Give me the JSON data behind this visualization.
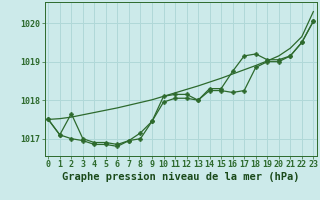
{
  "title": "Graphe pression niveau de la mer (hPa)",
  "xlabel_hours": [
    0,
    1,
    2,
    3,
    4,
    5,
    6,
    7,
    8,
    9,
    10,
    11,
    12,
    13,
    14,
    15,
    16,
    17,
    18,
    19,
    20,
    21,
    22,
    23
  ],
  "line_straight": [
    1017.5,
    1017.52,
    1017.56,
    1017.62,
    1017.68,
    1017.74,
    1017.8,
    1017.87,
    1017.94,
    1018.01,
    1018.1,
    1018.19,
    1018.28,
    1018.37,
    1018.47,
    1018.57,
    1018.68,
    1018.79,
    1018.9,
    1019.02,
    1019.15,
    1019.35,
    1019.65,
    1020.3
  ],
  "line_mid": [
    1017.5,
    1017.1,
    1017.65,
    1017.0,
    1016.9,
    1016.9,
    1016.85,
    1016.95,
    1017.15,
    1017.45,
    1017.95,
    1018.05,
    1018.05,
    1018.0,
    1018.25,
    1018.25,
    1018.2,
    1018.25,
    1018.85,
    1019.0,
    1019.0,
    1019.15,
    1019.5,
    1020.05
  ],
  "line_low": [
    1017.5,
    1017.1,
    1017.0,
    1016.95,
    1016.85,
    1016.85,
    1016.8,
    1016.95,
    1017.0,
    1017.45,
    1018.1,
    1018.15,
    1018.15,
    1018.0,
    1018.3,
    1018.3,
    1018.75,
    1019.15,
    1019.2,
    1019.05,
    1019.05,
    1019.15,
    1019.5,
    1020.05
  ],
  "ylim": [
    1016.55,
    1020.55
  ],
  "yticks": [
    1017,
    1018,
    1019,
    1020
  ],
  "line_color": "#2d6a2d",
  "bg_color": "#cceaea",
  "grid_color": "#b0d8d8",
  "title_color": "#1a4a1a",
  "title_fontsize": 7.5,
  "tick_fontsize": 6.0
}
